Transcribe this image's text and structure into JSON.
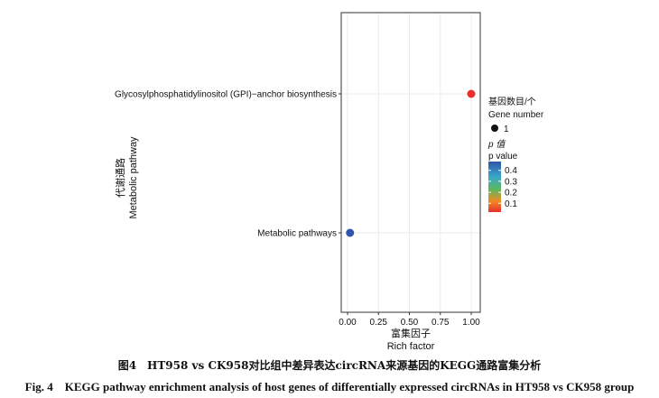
{
  "chart_data": {
    "type": "scatter",
    "title": "",
    "xlabel_cn": "富集因子",
    "xlabel": "Rich factor",
    "ylabel_cn": "代谢通路",
    "ylabel": "Metabolic pathway",
    "xlim": [
      0,
      1
    ],
    "xticks": [
      "0.00",
      "0.25",
      "0.50",
      "0.75",
      "1.00"
    ],
    "grid": true,
    "categories": [
      "Glycosylphosphatidylinositol (GPI)−anchor biosynthesis",
      "Metabolic pathways"
    ],
    "points": [
      {
        "pathway": "Glycosylphosphatidylinositol (GPI)−anchor biosynthesis",
        "rich_factor": 1.0,
        "gene_number": 1,
        "p_value": 0.02,
        "color": "#e8302a"
      },
      {
        "pathway": "Metabolic pathways",
        "rich_factor": 0.02,
        "gene_number": 1,
        "p_value": 0.48,
        "color": "#2f56a8"
      }
    ],
    "size_legend": {
      "title_cn": "基因数目/个",
      "title": "Gene  number",
      "entries": [
        "1"
      ]
    },
    "color_legend": {
      "title_cn": "p 值",
      "title": "p value",
      "ticks": [
        "0.4",
        "0.3",
        "0.2",
        "0.1"
      ],
      "tick_values": [
        0.4,
        0.3,
        0.2,
        0.1
      ],
      "range": [
        0.02,
        0.48
      ],
      "colors": [
        "#e8302a",
        "#f08a24",
        "#5cb85c",
        "#3aa5c9",
        "#2f56a8"
      ]
    }
  },
  "caption": {
    "cn": "图4　HT958 vs CK958对比组中差异表达circRNA来源基因的KEGG通路富集分析",
    "en": "Fig. 4　KEGG pathway enrichment analysis of host genes of differentially expressed circRNAs in HT958 vs CK958 group"
  }
}
